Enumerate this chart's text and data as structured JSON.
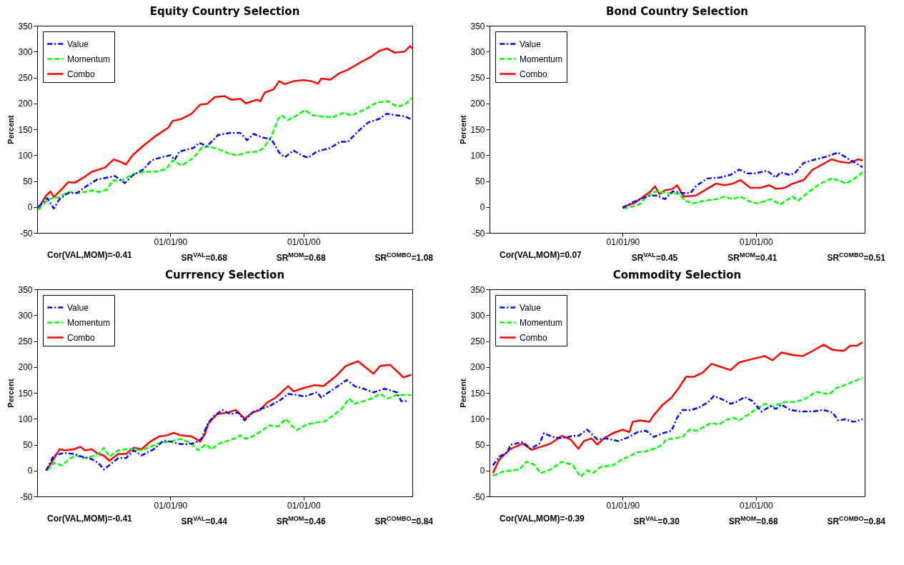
{
  "chart_data": [
    {
      "type": "line",
      "title": "Equity Country Selection",
      "ylabel": "Percent",
      "xlim": [
        "1980-01",
        "2008-03"
      ],
      "xticks": [
        {
          "value": "1990-01-01",
          "label": "01/01/90"
        },
        {
          "value": "2000-01-01",
          "label": "01/01/00"
        }
      ],
      "ylim": [
        -50,
        350
      ],
      "yticks": [
        -50,
        0,
        50,
        100,
        150,
        200,
        250,
        300,
        350
      ],
      "legend": "top left",
      "annotations": [
        "Cor(VAL,MOM)=-0.41",
        "SR$^{VAL}$=0.68",
        "SR$^{MOM}$=0.68",
        "SR$^{COMBO}$=1.08"
      ],
      "series": [
        {
          "name": "Value",
          "color": "#0000ff",
          "line_style": "dashdot",
          "x": [
            "1980-02",
            "1980-10",
            "1981-04",
            "1981-09",
            "1982-05",
            "1983-01",
            "1983-10",
            "1984-07",
            "1985-07",
            "1985-11",
            "1986-08",
            "1987-03",
            "1988-01",
            "1988-08",
            "1989-07",
            "1990-01",
            "1990-05",
            "1990-09",
            "1991-10",
            "1992-03",
            "1992-10",
            "1993-08",
            "1994-07",
            "1995-04",
            "1995-10",
            "1996-04",
            "1996-12",
            "1997-08",
            "1998-03",
            "1998-08",
            "1999-04",
            "1999-11",
            "2000-05",
            "2001-01",
            "2002-01",
            "2002-10",
            "2003-05",
            "2004-02",
            "2004-11",
            "2005-09",
            "2006-04",
            "2007-01",
            "2007-08",
            "2008-03"
          ],
          "values": [
            0,
            17,
            -3,
            15,
            27,
            27,
            41,
            53,
            58,
            60,
            46,
            61,
            73,
            90,
            97,
            100,
            91,
            107,
            114,
            124,
            117,
            139,
            143,
            143,
            129,
            141,
            134,
            131,
            105,
            96,
            109,
            100,
            95,
            107,
            114,
            126,
            126,
            146,
            163,
            170,
            180,
            177,
            175,
            168
          ]
        },
        {
          "name": "Momentum",
          "color": "#00ff00",
          "line_style": "dashed",
          "x": [
            "1980-02",
            "1980-11",
            "1981-09",
            "1982-05",
            "1983-03",
            "1984-02",
            "1984-09",
            "1985-04",
            "1985-09",
            "1986-05",
            "1987-03",
            "1988-01",
            "1988-11",
            "1989-09",
            "1990-03",
            "1990-11",
            "1991-10",
            "1992-05",
            "1992-10",
            "1993-08",
            "1994-07",
            "1995-02",
            "1995-09",
            "1996-08",
            "1997-01",
            "1997-08",
            "1998-02",
            "1998-05",
            "1998-11",
            "1999-07",
            "2000-02",
            "2000-09",
            "2001-05",
            "2002-03",
            "2003-01",
            "2003-08",
            "2004-07",
            "2005-07",
            "2006-05",
            "2007-01",
            "2007-08",
            "2008-03"
          ],
          "values": [
            -5,
            15,
            19,
            29,
            27,
            32,
            29,
            34,
            51,
            51,
            63,
            68,
            68,
            73,
            90,
            80,
            95,
            114,
            117,
            112,
            102,
            100,
            105,
            107,
            114,
            136,
            170,
            177,
            168,
            177,
            187,
            177,
            175,
            173,
            182,
            177,
            187,
            202,
            204,
            194,
            197,
            211
          ]
        },
        {
          "name": "Combo",
          "color": "#ff0000",
          "line_style": "solid",
          "x": [
            "1980-02",
            "1980-09",
            "1981-01",
            "1981-04",
            "1981-11",
            "1982-05",
            "1982-11",
            "1983-07",
            "1984-02",
            "1985-02",
            "1985-10",
            "1986-04",
            "1986-09",
            "1987-03",
            "1988-01",
            "1988-11",
            "1989-11",
            "1990-03",
            "1990-11",
            "1991-08",
            "1992-04",
            "1992-10",
            "1993-05",
            "1994-02",
            "1994-08",
            "1995-04",
            "1995-09",
            "1996-07",
            "1996-10",
            "1997-02",
            "1997-10",
            "1998-03",
            "1998-08",
            "1999-04",
            "2000-01",
            "2000-08",
            "2001-02",
            "2001-05",
            "2002-01",
            "2002-09",
            "2003-05",
            "2004-04",
            "2005-01",
            "2005-09",
            "2006-04",
            "2006-11",
            "2007-08",
            "2008-01",
            "2008-03"
          ],
          "values": [
            -3,
            22,
            30,
            19,
            34,
            48,
            47,
            57,
            68,
            76,
            92,
            87,
            82,
            100,
            119,
            136,
            153,
            166,
            170,
            180,
            198,
            199,
            212,
            214,
            207,
            209,
            200,
            207,
            204,
            221,
            227,
            243,
            237,
            243,
            245,
            243,
            238,
            248,
            246,
            258,
            265,
            279,
            289,
            301,
            306,
            298,
            300,
            311,
            306
          ]
        }
      ]
    },
    {
      "type": "line",
      "title": "Bond Country Selection",
      "ylabel": "Percent",
      "xlim": [
        "1980-01",
        "2008-03"
      ],
      "xticks": [
        {
          "value": "1990-01-01",
          "label": "01/01/90"
        },
        {
          "value": "2000-01-01",
          "label": "01/01/00"
        }
      ],
      "ylim": [
        -50,
        350
      ],
      "yticks": [
        -50,
        0,
        50,
        100,
        150,
        200,
        250,
        300,
        350
      ],
      "legend": "top left",
      "annotations": [
        "Cor(VAL,MOM)=0.07",
        "SR$^{VAL}$=0.45",
        "SR$^{MOM}$=0.41",
        "SR$^{COMBO}$=0.51"
      ],
      "series": [
        {
          "name": "Value",
          "color": "#0000ff",
          "line_style": "dashdot",
          "x": [
            "1990-01",
            "1990-08",
            "1991-07",
            "1992-02",
            "1992-08",
            "1993-03",
            "1993-10",
            "1994-07",
            "1995-02",
            "1995-07",
            "1996-05",
            "1997-05",
            "1998-02",
            "1998-10",
            "1999-05",
            "2000-01",
            "2000-11",
            "2001-07",
            "2001-11",
            "2002-07",
            "2002-12",
            "2003-08",
            "2004-07",
            "2005-04",
            "2006-03",
            "2007-01",
            "2008-01"
          ],
          "values": [
            -2,
            7,
            17,
            22,
            22,
            15,
            30,
            27,
            27,
            40,
            55,
            57,
            62,
            72,
            65,
            65,
            70,
            57,
            67,
            62,
            65,
            85,
            92,
            97,
            105,
            92,
            77
          ]
        },
        {
          "name": "Momentum",
          "color": "#00ff00",
          "line_style": "dashed",
          "x": [
            "1990-01",
            "1990-05",
            "1991-04",
            "1991-11",
            "1992-07",
            "1993-05",
            "1994-04",
            "1994-09",
            "1995-04",
            "1996-03",
            "1997-01",
            "1997-09",
            "1998-04",
            "1998-11",
            "1999-08",
            "2000-03",
            "2001-02",
            "2001-11",
            "2002-10",
            "2003-03",
            "2004-01",
            "2004-11",
            "2005-09",
            "2006-05",
            "2006-10",
            "2007-06",
            "2008-01"
          ],
          "values": [
            -2,
            -2,
            5,
            22,
            30,
            27,
            25,
            12,
            7,
            12,
            15,
            20,
            15,
            20,
            10,
            7,
            15,
            5,
            20,
            12,
            30,
            45,
            55,
            50,
            45,
            55,
            67
          ]
        },
        {
          "name": "Combo",
          "color": "#ff0000",
          "line_style": "solid",
          "x": [
            "1990-01",
            "1990-11",
            "1991-09",
            "1992-02",
            "1992-06",
            "1992-10",
            "1993-03",
            "1993-10",
            "1994-02",
            "1994-08",
            "1995-07",
            "1996-05",
            "1997-01",
            "1997-09",
            "1998-04",
            "1998-11",
            "1999-08",
            "2000-05",
            "2001-01",
            "2001-07",
            "2002-03",
            "2002-10",
            "2003-08",
            "2004-04",
            "2004-11",
            "2005-09",
            "2006-05",
            "2007-01",
            "2007-09",
            "2008-01"
          ],
          "values": [
            0,
            7,
            22,
            30,
            40,
            25,
            32,
            35,
            42,
            20,
            22,
            35,
            45,
            42,
            45,
            52,
            37,
            37,
            42,
            35,
            37,
            45,
            52,
            72,
            80,
            92,
            87,
            85,
            92,
            90
          ]
        }
      ]
    },
    {
      "type": "line",
      "title": "Currrency Selection",
      "ylabel": "Percent",
      "xlim": [
        "1980-01",
        "2008-03"
      ],
      "xticks": [
        {
          "value": "1990-01-01",
          "label": "01/01/90"
        },
        {
          "value": "2000-01-01",
          "label": "01/01/00"
        }
      ],
      "ylim": [
        -50,
        350
      ],
      "yticks": [
        -50,
        0,
        50,
        100,
        150,
        200,
        250,
        300,
        350
      ],
      "legend": "top left",
      "annotations": [
        "Cor(VAL,MOM)=-0.41",
        "SR$^{VAL}$=0.44",
        "SR$^{MOM}$=0.46",
        "SR$^{COMBO}$=0.84"
      ],
      "series": [
        {
          "name": "Value",
          "color": "#0000ff",
          "line_style": "dashdot",
          "x": [
            "1980-09",
            "1981-04",
            "1982-01",
            "1982-10",
            "1983-05",
            "1984-02",
            "1984-08",
            "1985-01",
            "1985-07",
            "1986-02",
            "1986-09",
            "1987-04",
            "1987-11",
            "1988-10",
            "1989-07",
            "1990-01",
            "1990-10",
            "1991-04",
            "1991-11",
            "1992-05",
            "1992-11",
            "1993-04",
            "1993-12",
            "1994-07",
            "1995-02",
            "1995-08",
            "1996-03",
            "1996-10",
            "1997-06",
            "1998-04",
            "1998-11",
            "1999-07",
            "2000-02",
            "2001-01",
            "2001-05",
            "2002-01",
            "2002-08",
            "2003-04",
            "2003-11",
            "2004-07",
            "2005-04",
            "2006-02",
            "2007-01",
            "2007-05",
            "2007-11"
          ],
          "values": [
            0,
            29,
            34,
            32,
            27,
            22,
            15,
            2,
            12,
            24,
            24,
            39,
            29,
            41,
            58,
            56,
            51,
            51,
            53,
            61,
            92,
            105,
            117,
            109,
            112,
            97,
            112,
            119,
            124,
            136,
            148,
            146,
            143,
            151,
            141,
            153,
            163,
            175,
            163,
            158,
            151,
            158,
            151,
            134,
            134
          ]
        },
        {
          "name": "Momentum",
          "color": "#00ff00",
          "line_style": "dashed",
          "x": [
            "1980-10",
            "1981-04",
            "1981-11",
            "1982-07",
            "1982-12",
            "1983-07",
            "1984-02",
            "1984-08",
            "1985-01",
            "1985-06",
            "1986-02",
            "1986-09",
            "1987-04",
            "1987-11",
            "1988-07",
            "1989-03",
            "1990-01",
            "1990-10",
            "1991-07",
            "1992-02",
            "1992-09",
            "1993-02",
            "1993-08",
            "1994-02",
            "1994-10",
            "1995-04",
            "1995-09",
            "1996-03",
            "1996-10",
            "1997-06",
            "1998-02",
            "1998-09",
            "1999-02",
            "1999-07",
            "2000-02",
            "2000-10",
            "2001-08",
            "2002-03",
            "2002-11",
            "2003-06",
            "2003-11",
            "2004-07",
            "2005-02",
            "2005-10",
            "2006-05",
            "2007-01",
            "2007-07",
            "2008-02"
          ],
          "values": [
            0,
            15,
            10,
            24,
            29,
            24,
            27,
            32,
            44,
            27,
            39,
            41,
            41,
            39,
            46,
            53,
            56,
            61,
            53,
            39,
            51,
            41,
            51,
            56,
            61,
            68,
            61,
            66,
            75,
            87,
            85,
            100,
            87,
            78,
            87,
            92,
            95,
            105,
            119,
            139,
            129,
            134,
            139,
            148,
            139,
            146,
            146,
            146
          ]
        },
        {
          "name": "Combo",
          "color": "#ff0000",
          "line_style": "solid",
          "x": [
            "1980-09",
            "1981-03",
            "1981-09",
            "1982-02",
            "1982-10",
            "1983-04",
            "1983-08",
            "1984-02",
            "1984-08",
            "1985-01",
            "1985-06",
            "1986-02",
            "1986-09",
            "1987-04",
            "1987-11",
            "1988-07",
            "1989-03",
            "1989-10",
            "1990-04",
            "1990-10",
            "1991-08",
            "1992-04",
            "1992-08",
            "1992-11",
            "1993-07",
            "1994-05",
            "1994-12",
            "1995-08",
            "1996-03",
            "1996-10",
            "1997-04",
            "1997-12",
            "1998-11",
            "1999-04",
            "2000-02",
            "2000-11",
            "2001-07",
            "2002-06",
            "2003-03",
            "2004-02",
            "2004-09",
            "2005-04",
            "2005-10",
            "2006-07",
            "2007-01",
            "2007-07",
            "2008-02"
          ],
          "values": [
            0,
            19,
            41,
            39,
            41,
            46,
            39,
            41,
            32,
            29,
            19,
            32,
            32,
            44,
            41,
            56,
            66,
            68,
            73,
            68,
            66,
            56,
            70,
            90,
            109,
            112,
            117,
            100,
            112,
            117,
            131,
            141,
            163,
            153,
            160,
            165,
            163,
            182,
            202,
            211,
            199,
            187,
            202,
            204,
            192,
            180,
            185
          ]
        }
      ]
    },
    {
      "type": "line",
      "title": "Commodity Selection",
      "ylabel": "Percent",
      "xlim": [
        "1980-01",
        "2008-03"
      ],
      "xticks": [
        {
          "value": "1990-01-01",
          "label": "01/01/90"
        },
        {
          "value": "2000-01-01",
          "label": "01/01/00"
        }
      ],
      "ylim": [
        -50,
        350
      ],
      "yticks": [
        -50,
        0,
        50,
        100,
        150,
        200,
        250,
        300,
        350
      ],
      "legend": "top left",
      "annotations": [
        "Cor(VAL,MOM)=-0.39",
        "SR$^{VAL}$=0.30",
        "SR$^{MOM}$=0.68",
        "SR$^{COMBO}$=0.84"
      ],
      "series": [
        {
          "name": "Value",
          "color": "#0000ff",
          "line_style": "dashdot",
          "x": [
            "1980-04",
            "1980-10",
            "1981-05",
            "1981-08",
            "1982-07",
            "1983-02",
            "1983-10",
            "1984-02",
            "1984-10",
            "1985-06",
            "1986-04",
            "1986-09",
            "1987-05",
            "1988-02",
            "1988-10",
            "1989-09",
            "1990-07",
            "1991-02",
            "1991-10",
            "1992-05",
            "1993-01",
            "1993-09",
            "1994-02",
            "1994-07",
            "1995-03",
            "1995-10",
            "1996-06",
            "1996-11",
            "1997-07",
            "1998-02",
            "1998-07",
            "1999-03",
            "1999-10",
            "2000-06",
            "2001-02",
            "2001-07",
            "2001-12",
            "2002-08",
            "2003-05",
            "2004-04",
            "2005-02",
            "2005-10",
            "2006-03",
            "2006-10",
            "2007-05",
            "2008-01"
          ],
          "values": [
            10,
            27,
            35,
            50,
            55,
            42,
            52,
            72,
            65,
            62,
            67,
            67,
            79,
            60,
            62,
            57,
            65,
            74,
            77,
            65,
            72,
            77,
            102,
            117,
            117,
            122,
            132,
            144,
            137,
            129,
            132,
            142,
            134,
            114,
            124,
            119,
            127,
            117,
            114,
            114,
            117,
            112,
            97,
            99,
            94,
            99
          ]
        },
        {
          "name": "Momentum",
          "color": "#00ff00",
          "line_style": "dashed",
          "x": [
            "1980-04",
            "1981-01",
            "1981-08",
            "1982-04",
            "1982-10",
            "1983-05",
            "1983-11",
            "1984-08",
            "1985-06",
            "1986-02",
            "1986-04",
            "1986-11",
            "1987-05",
            "1987-10",
            "1988-05",
            "1989-04",
            "1989-11",
            "1990-07",
            "1991-01",
            "1991-10",
            "1992-05",
            "1993-01",
            "1993-04",
            "1993-11",
            "1994-07",
            "1995-01",
            "1995-08",
            "1996-04",
            "1996-09",
            "1997-04",
            "1997-09",
            "1998-05",
            "1998-10",
            "1999-03",
            "1999-10",
            "2000-09",
            "2001-04",
            "2002-03",
            "2002-10",
            "2003-08",
            "2004-07",
            "2005-07",
            "2006-01",
            "2006-10",
            "2008-01"
          ],
          "values": [
            -10,
            -2,
            0,
            2,
            17,
            12,
            -5,
            2,
            17,
            12,
            10,
            -12,
            0,
            -5,
            7,
            10,
            20,
            27,
            35,
            37,
            42,
            50,
            60,
            62,
            65,
            79,
            77,
            87,
            92,
            89,
            97,
            102,
            97,
            104,
            114,
            129,
            124,
            132,
            132,
            137,
            152,
            147,
            159,
            166,
            179
          ]
        },
        {
          "name": "Combo",
          "color": "#ff0000",
          "line_style": "solid",
          "x": [
            "1980-04",
            "1980-10",
            "1981-03",
            "1981-08",
            "1982-07",
            "1983-03",
            "1984-01",
            "1984-08",
            "1985-06",
            "1986-02",
            "1986-09",
            "1987-02",
            "1987-09",
            "1988-02",
            "1988-08",
            "1989-04",
            "1990-01",
            "1990-07",
            "1990-10",
            "1991-05",
            "1992-01",
            "1992-05",
            "1993-01",
            "1993-09",
            "1994-04",
            "1994-10",
            "1995-05",
            "1996-01",
            "1996-09",
            "1997-04",
            "1998-02",
            "1998-10",
            "1999-11",
            "2000-09",
            "2001-04",
            "2001-12",
            "2002-10",
            "2003-07",
            "2004-04",
            "2005-02",
            "2005-10",
            "2006-08",
            "2007-02",
            "2007-08",
            "2008-01"
          ],
          "values": [
            -5,
            22,
            32,
            42,
            52,
            40,
            47,
            52,
            67,
            60,
            42,
            57,
            62,
            50,
            62,
            72,
            79,
            74,
            94,
            97,
            94,
            107,
            127,
            141,
            161,
            181,
            181,
            189,
            206,
            201,
            194,
            209,
            216,
            221,
            213,
            228,
            223,
            221,
            231,
            243,
            233,
            231,
            241,
            241,
            248
          ]
        }
      ]
    }
  ]
}
